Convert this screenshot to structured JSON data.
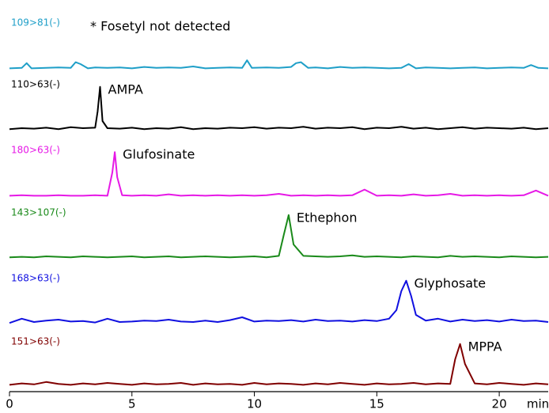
{
  "chart_data": {
    "type": "line",
    "annotation": "* Fosetyl not detected",
    "x_label": "min",
    "xlim": [
      0,
      22
    ],
    "xticks": [
      0,
      5,
      10,
      15,
      20
    ],
    "series": [
      {
        "name": "109>81(-)",
        "color": "#1f9fc8",
        "x": [
          0,
          0.5,
          0.7,
          0.9,
          1.5,
          2,
          2.5,
          2.7,
          2.9,
          3.2,
          3.5,
          4,
          4.5,
          5,
          5.5,
          6,
          6.5,
          7,
          7.5,
          8,
          8.5,
          9,
          9.5,
          9.7,
          9.9,
          10.5,
          11,
          11.5,
          11.7,
          11.9,
          12.2,
          12.5,
          13,
          13.5,
          14,
          14.5,
          15,
          15.5,
          16,
          16.3,
          16.6,
          17,
          17.5,
          18,
          18.5,
          19,
          19.5,
          20,
          20.5,
          21,
          21.3,
          21.6,
          22
        ],
        "values": [
          1,
          2,
          12,
          1,
          2,
          3,
          2,
          14,
          10,
          1,
          3,
          2,
          3,
          1,
          4,
          2,
          3,
          2,
          5,
          1,
          2,
          3,
          2,
          18,
          2,
          3,
          2,
          4,
          12,
          14,
          2,
          3,
          1,
          4,
          2,
          3,
          2,
          1,
          2,
          10,
          1,
          3,
          2,
          1,
          2,
          3,
          1,
          2,
          3,
          2,
          8,
          2,
          1
        ]
      },
      {
        "name": "110>63(-)",
        "color": "#000000",
        "peak_label": "AMPA",
        "x": [
          0,
          0.5,
          1,
          1.5,
          2,
          2.5,
          3,
          3.5,
          3.6,
          3.7,
          3.8,
          4,
          4.5,
          5,
          5.5,
          6,
          6.5,
          7,
          7.5,
          8,
          8.5,
          9,
          9.5,
          10,
          10.5,
          11,
          11.5,
          12,
          12.5,
          13,
          13.5,
          14,
          14.5,
          15,
          15.5,
          16,
          16.5,
          17,
          17.5,
          18,
          18.5,
          19,
          19.5,
          20,
          20.5,
          21,
          21.5,
          22
        ],
        "values": [
          3,
          5,
          4,
          6,
          3,
          7,
          5,
          6,
          40,
          92,
          20,
          5,
          4,
          6,
          3,
          5,
          4,
          7,
          3,
          5,
          4,
          6,
          5,
          7,
          4,
          6,
          5,
          8,
          4,
          6,
          5,
          7,
          3,
          6,
          5,
          8,
          4,
          6,
          3,
          5,
          7,
          4,
          6,
          5,
          4,
          6,
          3,
          5
        ]
      },
      {
        "name": "180>63(-)",
        "color": "#e619e6",
        "peak_label": "Glufosinate",
        "x": [
          0,
          0.5,
          1,
          1.5,
          2,
          2.5,
          3,
          3.5,
          4,
          4.2,
          4.3,
          4.4,
          4.6,
          5,
          5.5,
          6,
          6.5,
          7,
          7.5,
          8,
          8.5,
          9,
          9.5,
          10,
          10.5,
          11,
          11.5,
          12,
          12.5,
          13,
          13.5,
          14,
          14.5,
          15,
          15.5,
          16,
          16.5,
          17,
          17.5,
          18,
          18.5,
          19,
          19.5,
          20,
          20.5,
          21,
          21.5,
          22
        ],
        "values": [
          1,
          2,
          1,
          1,
          2,
          1,
          1,
          2,
          1,
          50,
          93,
          40,
          2,
          1,
          2,
          1,
          4,
          1,
          2,
          1,
          2,
          1,
          2,
          1,
          2,
          5,
          1,
          2,
          1,
          2,
          1,
          2,
          14,
          1,
          2,
          1,
          4,
          1,
          2,
          5,
          1,
          2,
          1,
          2,
          1,
          2,
          12,
          1
        ]
      },
      {
        "name": "143>107(-)",
        "color": "#1a8a1a",
        "peak_label": "Ethephon",
        "x": [
          0,
          0.5,
          1,
          1.5,
          2,
          2.5,
          3,
          3.5,
          4,
          4.5,
          5,
          5.5,
          6,
          6.5,
          7,
          7.5,
          8,
          8.5,
          9,
          9.5,
          10,
          10.5,
          11,
          11.2,
          11.4,
          11.6,
          12,
          12.5,
          13,
          13.5,
          14,
          14.5,
          15,
          15.5,
          16,
          16.5,
          17,
          17.5,
          18,
          18.5,
          19,
          19.5,
          20,
          20.5,
          21,
          21.5,
          22
        ],
        "values": [
          3,
          4,
          3,
          5,
          4,
          3,
          5,
          4,
          3,
          4,
          5,
          3,
          4,
          5,
          3,
          4,
          5,
          4,
          3,
          4,
          5,
          3,
          6,
          50,
          92,
          30,
          6,
          5,
          4,
          5,
          7,
          4,
          5,
          4,
          3,
          5,
          4,
          3,
          6,
          4,
          5,
          4,
          3,
          5,
          4,
          3,
          4
        ]
      },
      {
        "name": "168>63(-)",
        "color": "#1010e0",
        "peak_label": "Glyphosate",
        "x": [
          0,
          0.5,
          1,
          1.5,
          2,
          2.5,
          3,
          3.5,
          4,
          4.5,
          5,
          5.5,
          6,
          6.5,
          7,
          7.5,
          8,
          8.5,
          9,
          9.5,
          10,
          10.5,
          11,
          11.5,
          12,
          12.5,
          13,
          13.5,
          14,
          14.5,
          15,
          15.5,
          15.8,
          16,
          16.2,
          16.4,
          16.6,
          17,
          17.5,
          18,
          18.5,
          19,
          19.5,
          20,
          20.5,
          21,
          21.5,
          22
        ],
        "values": [
          3,
          12,
          5,
          8,
          10,
          6,
          7,
          4,
          12,
          5,
          6,
          8,
          7,
          10,
          6,
          5,
          8,
          5,
          9,
          15,
          6,
          8,
          7,
          9,
          6,
          10,
          7,
          8,
          6,
          9,
          7,
          12,
          30,
          70,
          92,
          60,
          20,
          8,
          12,
          6,
          10,
          7,
          9,
          6,
          10,
          7,
          8,
          5
        ]
      },
      {
        "name": "151>63(-)",
        "color": "#800000",
        "peak_label": "MPPA",
        "x": [
          0,
          0.5,
          1,
          1.5,
          2,
          2.5,
          3,
          3.5,
          4,
          4.5,
          5,
          5.5,
          6,
          6.5,
          7,
          7.5,
          8,
          8.5,
          9,
          9.5,
          10,
          10.5,
          11,
          11.5,
          12,
          12.5,
          13,
          13.5,
          14,
          14.5,
          15,
          15.5,
          16,
          16.5,
          17,
          17.5,
          18,
          18.2,
          18.4,
          18.6,
          19,
          19.5,
          20,
          20.5,
          21,
          21.5,
          22
        ],
        "values": [
          6,
          9,
          7,
          12,
          8,
          6,
          9,
          7,
          10,
          8,
          6,
          9,
          7,
          8,
          10,
          6,
          9,
          7,
          8,
          6,
          10,
          7,
          9,
          8,
          6,
          9,
          7,
          10,
          8,
          6,
          9,
          7,
          8,
          10,
          7,
          9,
          8,
          60,
          92,
          50,
          9,
          7,
          10,
          8,
          6,
          9,
          7
        ]
      }
    ]
  }
}
